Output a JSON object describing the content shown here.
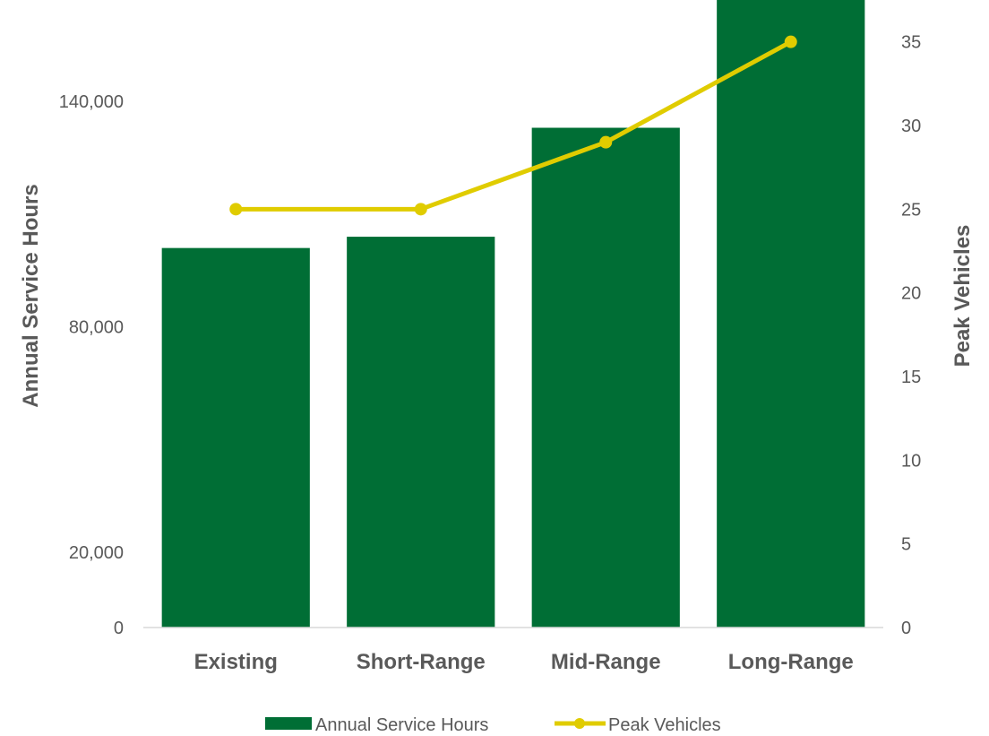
{
  "chart_data": {
    "type": "bar",
    "categories": [
      "Existing",
      "Short-Range",
      "Mid-Range",
      "Long-Range"
    ],
    "series": [
      {
        "name": "Annual Service Hours",
        "type": "bar",
        "axis": "left",
        "color": "#006E35",
        "values": [
          101000,
          104000,
          133000,
          170000
        ]
      },
      {
        "name": "Peak Vehicles",
        "type": "line",
        "axis": "right",
        "color": "#E0CC00",
        "values": [
          25,
          25,
          29,
          35
        ]
      }
    ],
    "ylabel": "Annual Service Hours",
    "ylabel_right": "Peak Vehicles",
    "ylim": [
      0,
      167000
    ],
    "ylim_right": [
      0,
      37.5
    ],
    "yticks": [
      "0",
      "20,000",
      "80,000",
      "140,000"
    ],
    "yticks_values": [
      0,
      20000,
      80000,
      140000
    ],
    "yticks_right": [
      "0",
      "5",
      "10",
      "15",
      "20",
      "25",
      "30",
      "35"
    ],
    "yticks_right_values": [
      0,
      5,
      10,
      15,
      20,
      25,
      30,
      35
    ],
    "grid": false,
    "legend_position": "bottom"
  }
}
